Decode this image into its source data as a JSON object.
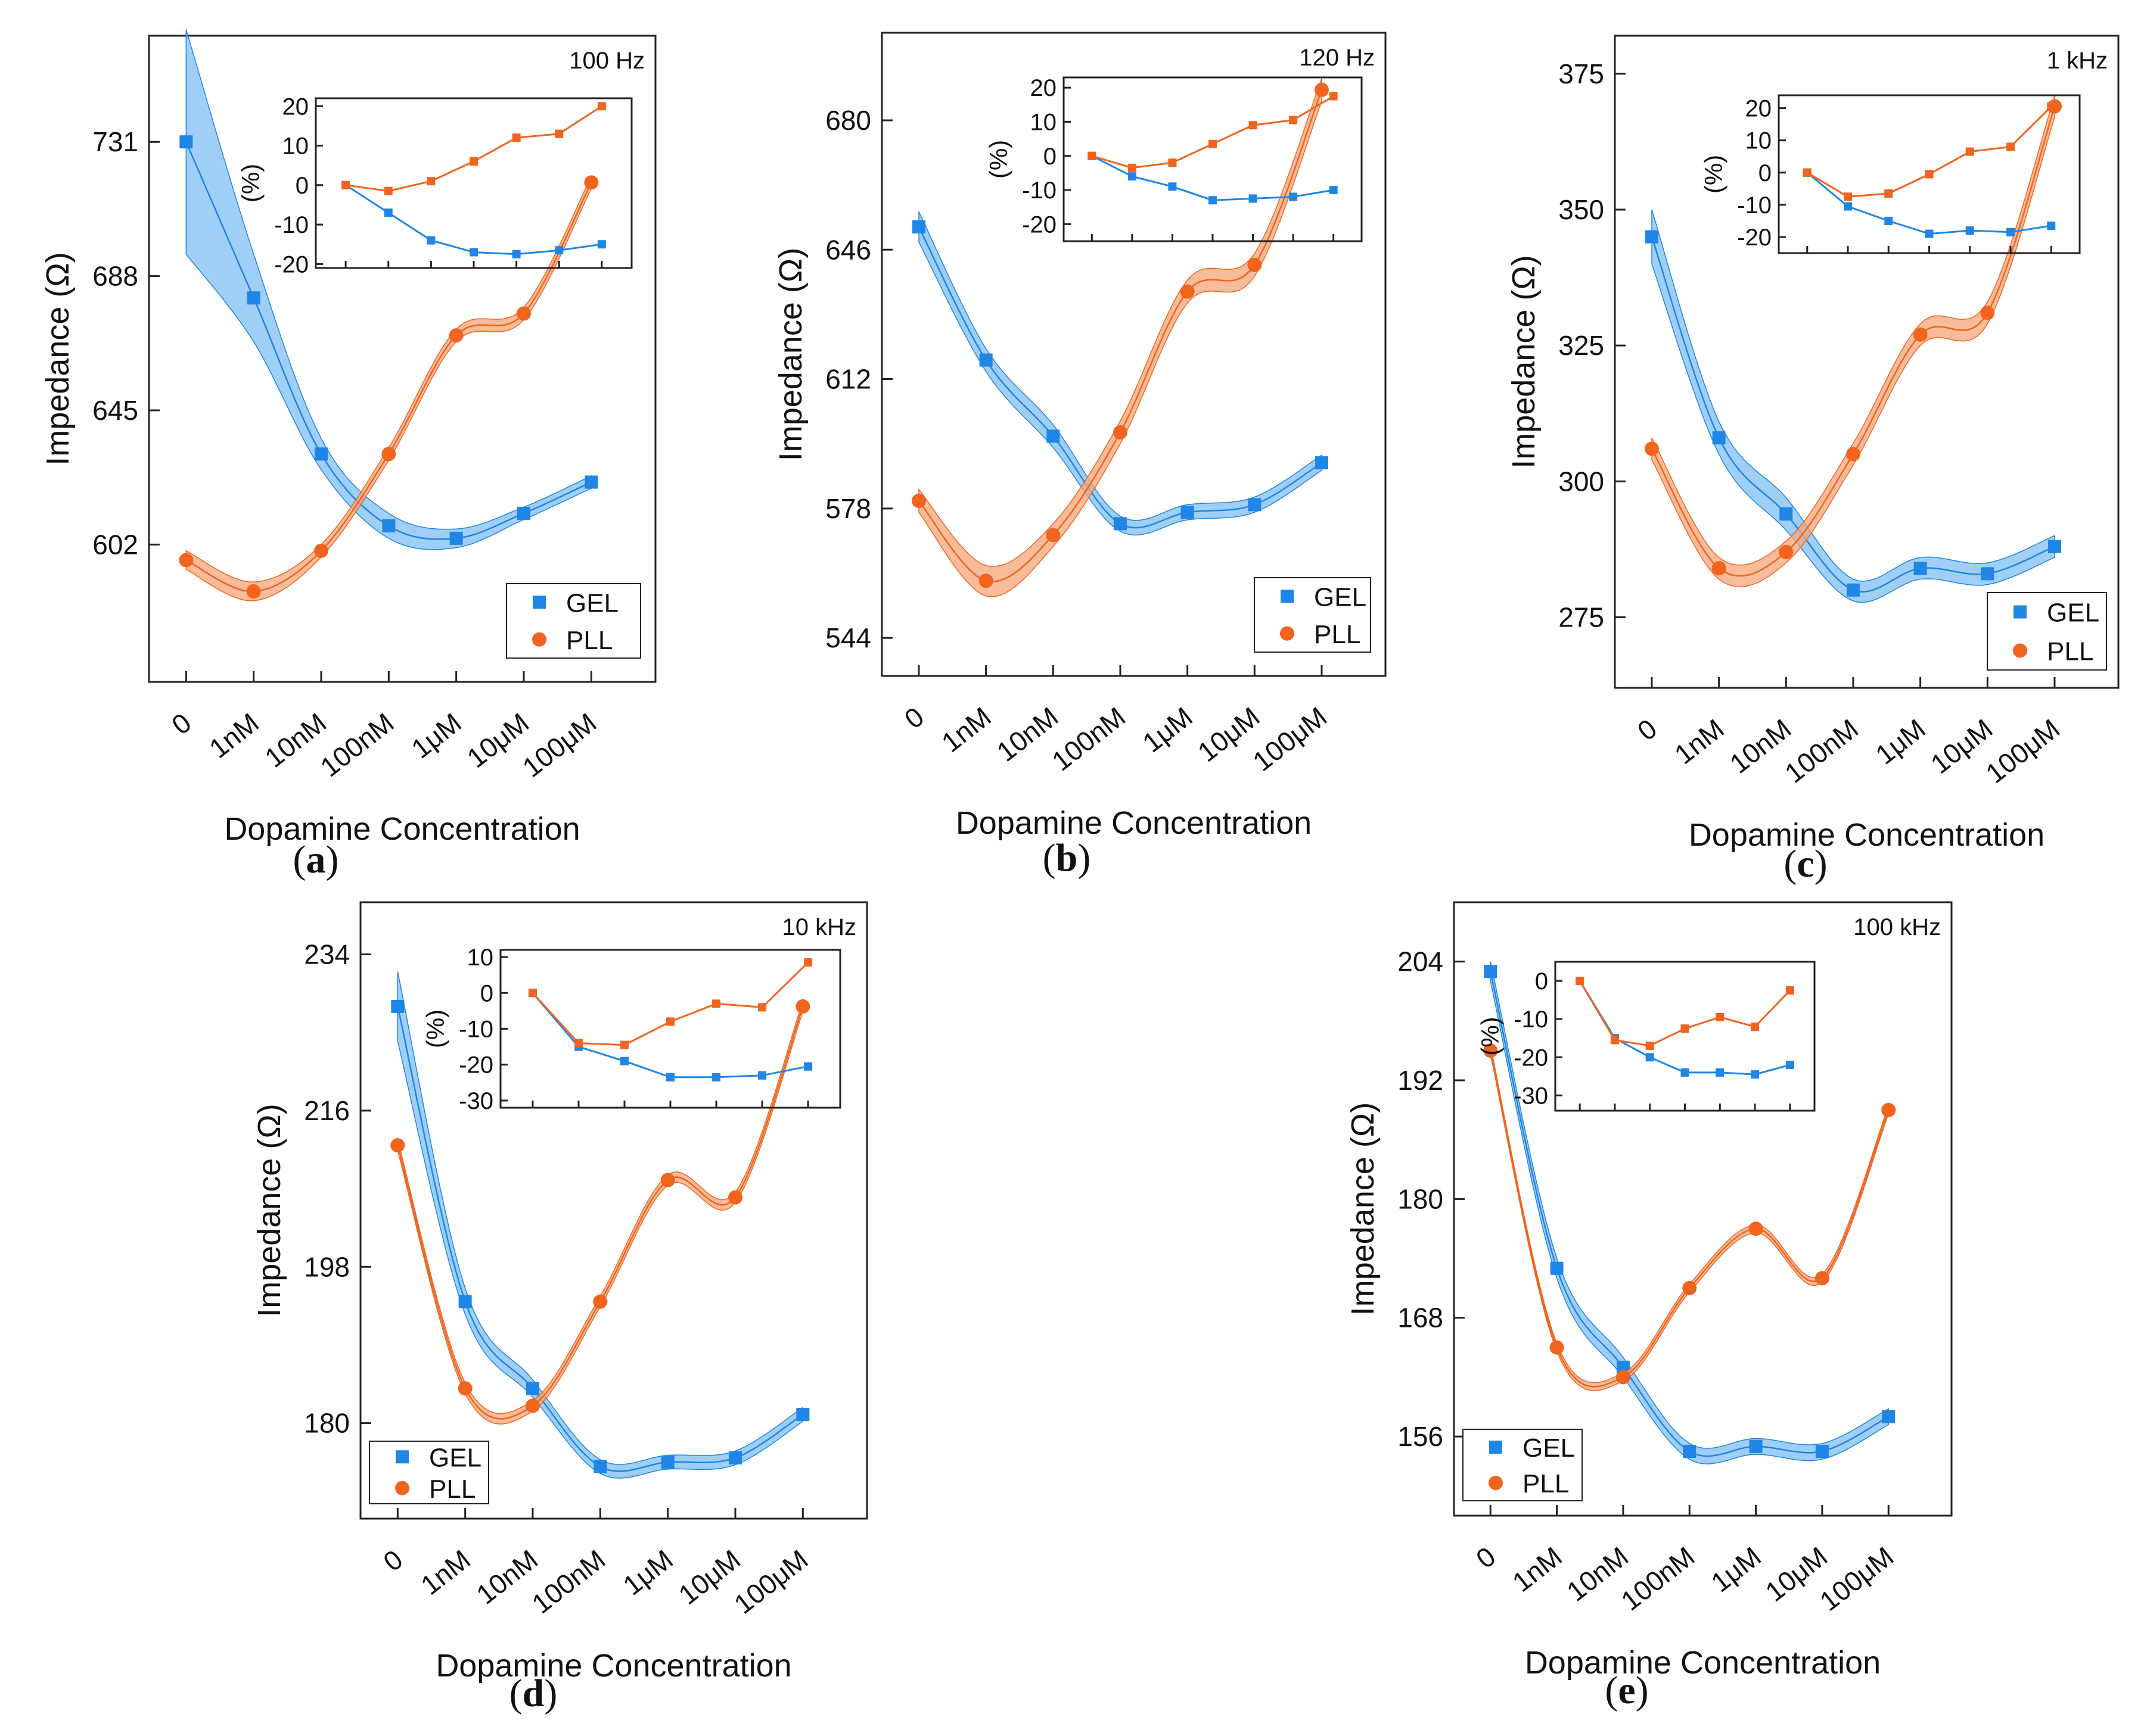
{
  "colors": {
    "gel": "#1f86e6",
    "pll": "#f0641e",
    "gel_band": "#7fbff3",
    "pll_band": "#f5a57a"
  },
  "chart_data": [
    {
      "type": "line",
      "panel_label": "a",
      "frequency": "100 Hz",
      "xlabel": "Dopamine Concentration",
      "ylabel": "Impedance (Ω)",
      "categories": [
        "0",
        "1nM",
        "10nM",
        "100nM",
        "1μM",
        "10μM",
        "100μM"
      ],
      "yticks": [
        602,
        645,
        688,
        731
      ],
      "ylim": [
        558,
        765
      ],
      "series": [
        {
          "name": "GEL",
          "marker": "square",
          "values": [
            731,
            681,
            631,
            608,
            604,
            612,
            622
          ],
          "band": [
            36,
            14,
            5,
            4,
            3,
            2,
            2
          ]
        },
        {
          "name": "PLL",
          "marker": "circle",
          "values": [
            597,
            587,
            600,
            631,
            669,
            676,
            718
          ],
          "band": [
            3,
            3,
            2,
            2,
            2,
            2,
            2
          ]
        }
      ],
      "legend_location": "bottom-right",
      "inset": {
        "ylabel": "(%)",
        "yticks": [
          20,
          10,
          0,
          -10,
          -20
        ],
        "ylim": [
          -21,
          22
        ],
        "series": [
          {
            "name": "GEL",
            "values": [
              0,
              -7,
              -14,
              -17,
              -17.5,
              -16.5,
              -15
            ]
          },
          {
            "name": "PLL",
            "values": [
              0,
              -1.5,
              1,
              6,
              12,
              13,
              20
            ]
          }
        ]
      }
    },
    {
      "type": "line",
      "panel_label": "b",
      "frequency": "120 Hz",
      "xlabel": "Dopamine Concentration",
      "ylabel": "Impedance (Ω)",
      "categories": [
        "0",
        "1nM",
        "10nM",
        "100nM",
        "1μM",
        "10μM",
        "100μM"
      ],
      "yticks": [
        544,
        578,
        612,
        646,
        680
      ],
      "ylim": [
        534,
        703
      ],
      "series": [
        {
          "name": "GEL",
          "marker": "square",
          "values": [
            652,
            617,
            597,
            574,
            577,
            579,
            590
          ],
          "band": [
            4,
            3,
            3,
            2,
            2,
            2,
            2
          ]
        },
        {
          "name": "PLL",
          "marker": "circle",
          "values": [
            580,
            559,
            571,
            598,
            635,
            642,
            688
          ],
          "band": [
            3,
            4,
            3,
            3,
            3,
            3,
            3
          ]
        }
      ],
      "legend_location": "bottom-right",
      "inset": {
        "ylabel": "(%)",
        "yticks": [
          20,
          10,
          0,
          -10,
          -20
        ],
        "ylim": [
          -25,
          23
        ],
        "series": [
          {
            "name": "GEL",
            "values": [
              0,
              -6,
              -9,
              -13,
              -12.5,
              -12,
              -10
            ]
          },
          {
            "name": "PLL",
            "values": [
              0,
              -3.5,
              -2,
              3.5,
              9,
              10.5,
              17.5
            ]
          }
        ]
      }
    },
    {
      "type": "line",
      "panel_label": "c",
      "frequency": "1 kHz",
      "xlabel": "Dopamine Concentration",
      "ylabel": "Impedance (Ω)",
      "categories": [
        "0",
        "1nM",
        "10nM",
        "100nM",
        "1μM",
        "10μM",
        "100μM"
      ],
      "yticks": [
        275,
        300,
        325,
        350,
        375
      ],
      "ylim": [
        262,
        382
      ],
      "series": [
        {
          "name": "GEL",
          "marker": "square",
          "values": [
            345,
            308,
            294,
            280,
            284,
            283,
            288
          ],
          "band": [
            5,
            3,
            3,
            2,
            2,
            2,
            2
          ]
        },
        {
          "name": "PLL",
          "marker": "circle",
          "values": [
            306,
            284,
            287,
            305,
            327,
            331,
            369
          ],
          "band": [
            2,
            2,
            2,
            2,
            2,
            2,
            2
          ]
        }
      ],
      "legend_location": "bottom-right",
      "inset": {
        "ylabel": "(%)",
        "yticks": [
          20,
          10,
          0,
          -10,
          -20
        ],
        "ylim": [
          -25,
          24
        ],
        "series": [
          {
            "name": "GEL",
            "values": [
              0,
              -10.5,
              -15,
              -19,
              -18,
              -18.5,
              -16.5
            ]
          },
          {
            "name": "PLL",
            "values": [
              0,
              -7.5,
              -6.5,
              -0.5,
              6.5,
              8,
              20.5
            ]
          }
        ]
      }
    },
    {
      "type": "line",
      "panel_label": "d",
      "frequency": "10 kHz",
      "xlabel": "Dopamine Concentration",
      "ylabel": "Impedance (Ω)",
      "categories": [
        "0",
        "1nM",
        "10nM",
        "100nM",
        "1μM",
        "10μM",
        "100μM"
      ],
      "yticks": [
        180,
        198,
        216,
        234
      ],
      "ylim": [
        169,
        240
      ],
      "series": [
        {
          "name": "GEL",
          "marker": "square",
          "values": [
            228,
            194,
            184,
            175,
            175.5,
            176,
            181
          ],
          "band": [
            4,
            1.5,
            1,
            0.8,
            0.8,
            0.8,
            0.8
          ]
        },
        {
          "name": "PLL",
          "marker": "circle",
          "values": [
            212,
            184,
            182,
            194,
            208,
            206,
            228
          ],
          "band": [
            0.6,
            0.6,
            0.6,
            0.6,
            0.6,
            0.6,
            0.6
          ]
        }
      ],
      "legend_location": "bottom-left",
      "inset": {
        "ylabel": "(%)",
        "yticks": [
          10,
          0,
          -10,
          -20,
          -30
        ],
        "ylim": [
          -32,
          12
        ],
        "series": [
          {
            "name": "GEL",
            "values": [
              0,
              -15,
              -19,
              -23.5,
              -23.5,
              -23,
              -20.5
            ]
          },
          {
            "name": "PLL",
            "values": [
              0,
              -14,
              -14.5,
              -8,
              -3,
              -4,
              8.5
            ]
          }
        ]
      }
    },
    {
      "type": "line",
      "panel_label": "e",
      "frequency": "100 kHz",
      "xlabel": "Dopamine Concentration",
      "ylabel": "Impedance (Ω)",
      "categories": [
        "0",
        "1nM",
        "10nM",
        "100nM",
        "1μM",
        "10μM",
        "100μM"
      ],
      "yticks": [
        156,
        168,
        180,
        192,
        204
      ],
      "ylim": [
        148,
        210
      ],
      "series": [
        {
          "name": "GEL",
          "marker": "square",
          "values": [
            203,
            173,
            163,
            154.5,
            155,
            154.5,
            158
          ],
          "band": [
            1,
            1,
            1,
            0.8,
            0.8,
            0.8,
            0.8
          ]
        },
        {
          "name": "PLL",
          "marker": "circle",
          "values": [
            195,
            165,
            162,
            171,
            177,
            172,
            189
          ],
          "band": [
            0.4,
            0.4,
            0.4,
            0.4,
            0.4,
            0.4,
            0.4
          ]
        }
      ],
      "legend_location": "bottom-left",
      "inset": {
        "ylabel": "(%)",
        "yticks": [
          0,
          -10,
          -20,
          -30
        ],
        "ylim": [
          -34,
          5
        ],
        "series": [
          {
            "name": "GEL",
            "values": [
              0,
              -15,
              -20,
              -24,
              -24,
              -24.5,
              -22
            ]
          },
          {
            "name": "PLL",
            "values": [
              0,
              -15.5,
              -17,
              -12.5,
              -9.5,
              -12,
              -2.5
            ]
          }
        ]
      }
    }
  ]
}
